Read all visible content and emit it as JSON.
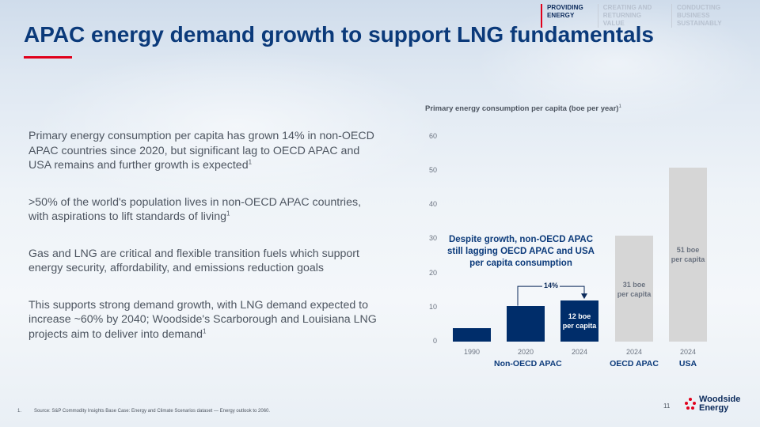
{
  "nav": {
    "items": [
      {
        "line1": "PROVIDING",
        "line2": "ENERGY",
        "active": true
      },
      {
        "line1": "CREATING AND",
        "line2": "RETURNING VALUE",
        "active": false
      },
      {
        "line1": "CONDUCTING BUSINESS",
        "line2": "SUSTAINABLY",
        "active": false
      }
    ]
  },
  "title": "APAC energy demand growth to support LNG fundamentals",
  "paragraphs": [
    {
      "text": "Primary energy consumption per capita has grown 14% in non-OECD APAC countries since 2020, but significant lag to OECD APAC and USA remains and further growth is expected",
      "note": "1"
    },
    {
      "text": ">50% of the world's population lives in non-OECD APAC countries, with aspirations to lift standards of living",
      "note": "1"
    },
    {
      "text": "Gas and LNG are critical and flexible transition fuels which support energy security, affordability, and emissions reduction goals",
      "note": ""
    },
    {
      "text": "This supports strong demand growth, with LNG demand expected to increase ~60% by 2040; Woodside's Scarborough and Louisiana LNG projects aim to deliver into demand",
      "note": "1"
    }
  ],
  "chart_data": {
    "type": "bar",
    "title": "Primary energy consumption per capita (boe per year)",
    "title_note": "1",
    "ylim": [
      0,
      60
    ],
    "yticks": [
      "0",
      "10",
      "20",
      "30",
      "40",
      "50",
      "60"
    ],
    "categories": [
      "1990",
      "2020",
      "2024",
      "2024",
      "2024"
    ],
    "values": [
      4,
      10.5,
      12,
      31,
      51
    ],
    "groups": [
      "Non-OECD APAC",
      "Non-OECD APAC",
      "Non-OECD APAC",
      "OECD APAC",
      "USA"
    ],
    "group_labels": [
      "Non-OECD APAC",
      "OECD APAC",
      "USA"
    ],
    "bar_colors": [
      "#002d6a",
      "#002d6a",
      "#002d6a",
      "#d6d6d6",
      "#d6d6d6"
    ],
    "data_labels": [
      {
        "index": 2,
        "line1": "12 boe",
        "line2": "per capita"
      },
      {
        "index": 3,
        "line1": "31 boe",
        "line2": "per capita"
      },
      {
        "index": 4,
        "line1": "51 boe",
        "line2": "per capita"
      }
    ],
    "growth_label": "14%",
    "annotation": [
      "Despite growth, non-OECD APAC",
      "still lagging OECD APAC and USA",
      "per capita consumption"
    ]
  },
  "footnote": {
    "number": "1.",
    "text": "Source: S&P Commodity Insights Base Case: Energy and Climate Scenarios dataset — Energy outlook to 2060."
  },
  "page_number": "11",
  "logo": {
    "line1": "Woodside",
    "line2": "Energy"
  },
  "colors": {
    "navy": "#0b3a7a",
    "bar_navy": "#002d6a",
    "bar_grey": "#d6d6d6",
    "accent_red": "#e0001b"
  }
}
